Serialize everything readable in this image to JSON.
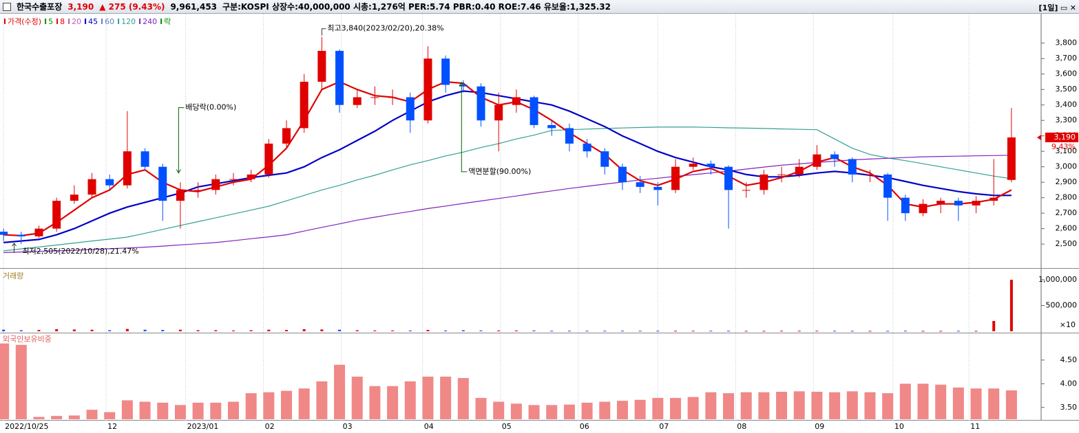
{
  "header": {
    "name": "한국수출포장",
    "price": "3,190",
    "change": "▲ 275 (9.43%)",
    "volume": "9,961,453",
    "info": "구분:KOSPI 상장수:40,000,000 시총:1,276억 PER:5.74 PBR:0.40 ROE:7.46 유보율:1,325.32",
    "period": "[1일]"
  },
  "chart_data": [
    {
      "type": "candlestick",
      "legend": [
        {
          "name": "가격(수정)",
          "color": "#e00000"
        },
        {
          "name": "5",
          "color": "#009000"
        },
        {
          "name": "8",
          "color": "#e00000"
        },
        {
          "name": "20",
          "color": "#c060b0"
        },
        {
          "name": "45",
          "color": "#0000c8"
        },
        {
          "name": "60",
          "color": "#6080c8"
        },
        {
          "name": "120",
          "color": "#30a090"
        },
        {
          "name": "240",
          "color": "#8020c0"
        },
        {
          "name": "락",
          "color": "#009000"
        }
      ],
      "x": [
        0,
        1,
        2,
        3,
        4,
        5,
        6,
        7,
        8,
        9,
        10,
        11,
        12,
        13,
        14,
        15,
        16,
        17,
        18,
        19,
        20,
        21,
        22,
        23,
        24,
        25,
        26,
        27,
        28,
        29,
        30,
        31,
        32,
        33,
        34,
        35,
        36,
        37,
        38,
        39,
        40,
        41,
        42,
        43,
        44,
        45,
        46,
        47,
        48,
        49,
        50,
        51,
        52,
        53,
        54,
        55,
        56,
        57
      ],
      "open": [
        2580,
        2560,
        2550,
        2600,
        2780,
        2820,
        2920,
        2880,
        3100,
        3000,
        2780,
        2850,
        2850,
        2920,
        2920,
        2950,
        3150,
        3250,
        3550,
        3750,
        3400,
        3450,
        3450,
        3450,
        3300,
        3700,
        3530,
        3520,
        3300,
        3400,
        3450,
        3270,
        3250,
        3150,
        3100,
        3000,
        2900,
        2870,
        2850,
        3000,
        3020,
        3000,
        2850,
        2850,
        2950,
        2950,
        3000,
        3080,
        3050,
        2950,
        2950,
        2800,
        2700,
        2760,
        2780,
        2750,
        2780,
        2915
      ],
      "high": [
        2600,
        2580,
        2620,
        2800,
        2880,
        2960,
        2950,
        3360,
        3120,
        3020,
        2900,
        2900,
        2950,
        2960,
        2980,
        3180,
        3300,
        3600,
        3840,
        3760,
        3500,
        3520,
        3500,
        3480,
        3780,
        3720,
        3560,
        3540,
        3480,
        3500,
        3460,
        3300,
        3280,
        3180,
        3120,
        3020,
        2940,
        2900,
        3050,
        3060,
        3040,
        3010,
        2900,
        2980,
        3000,
        3050,
        3140,
        3100,
        3060,
        2980,
        2960,
        2820,
        2790,
        2800,
        2800,
        2810,
        3050,
        3380
      ],
      "low": [
        2520,
        2500,
        2540,
        2580,
        2760,
        2800,
        2850,
        2860,
        2980,
        2650,
        2600,
        2800,
        2820,
        2880,
        2900,
        2930,
        3120,
        3220,
        3500,
        3350,
        3380,
        3400,
        3400,
        3220,
        3280,
        3480,
        3480,
        3260,
        3100,
        3350,
        3250,
        3200,
        3100,
        3060,
        2950,
        2850,
        2830,
        2750,
        2830,
        2980,
        2950,
        2600,
        2800,
        2820,
        2900,
        2930,
        2980,
        3000,
        2900,
        2900,
        2650,
        2650,
        2680,
        2700,
        2650,
        2700,
        2750,
        2900
      ],
      "close": [
        2560,
        2550,
        2600,
        2780,
        2820,
        2920,
        2880,
        3100,
        3000,
        2780,
        2850,
        2850,
        2920,
        2920,
        2950,
        3150,
        3250,
        3550,
        3750,
        3400,
        3450,
        3450,
        3450,
        3300,
        3700,
        3530,
        3520,
        3300,
        3400,
        3450,
        3270,
        3250,
        3150,
        3100,
        3000,
        2900,
        2870,
        2850,
        3000,
        3020,
        3000,
        2850,
        2850,
        2950,
        2950,
        3000,
        3080,
        3050,
        2950,
        2950,
        2800,
        2700,
        2760,
        2780,
        2750,
        2780,
        2800,
        3190
      ],
      "up_color": "#e00000",
      "down_color": "#0050ff",
      "series": [
        {
          "color": "#30a090",
          "values": [
            2456,
            2469,
            2481,
            2494,
            2507,
            2520,
            2532,
            2545,
            2570,
            2595,
            2620,
            2645,
            2670,
            2695,
            2720,
            2745,
            2780,
            2815,
            2850,
            2880,
            2915,
            2945,
            2980,
            3013,
            3040,
            3070,
            3095,
            3125,
            3150,
            3180,
            3205,
            3235,
            3240,
            3244,
            3248,
            3251,
            3254,
            3257,
            3257,
            3257,
            3255,
            3252,
            3250,
            3248,
            3245,
            3242,
            3240,
            3180,
            3120,
            3080,
            3057,
            3040,
            3020,
            3000,
            2980,
            2960,
            2940,
            2923
          ]
        },
        {
          "color": "#8020c0",
          "values": [
            2445,
            2449,
            2453,
            2456,
            2460,
            2465,
            2470,
            2475,
            2480,
            2487,
            2495,
            2502,
            2510,
            2522,
            2535,
            2547,
            2560,
            2584,
            2608,
            2631,
            2655,
            2674,
            2693,
            2711,
            2730,
            2746,
            2763,
            2779,
            2795,
            2811,
            2828,
            2844,
            2860,
            2874,
            2888,
            2901,
            2915,
            2926,
            2938,
            2949,
            2960,
            2972,
            2985,
            2998,
            3010,
            3019,
            3028,
            3036,
            3045,
            3050,
            3055,
            3060,
            3065,
            3067,
            3069,
            3071,
            3073,
            3075
          ]
        },
        {
          "color": "#0000c8",
          "values": [
            2510,
            2520,
            2530,
            2560,
            2600,
            2650,
            2700,
            2740,
            2770,
            2800,
            2830,
            2870,
            2890,
            2910,
            2930,
            2945,
            2960,
            3000,
            3060,
            3110,
            3170,
            3230,
            3300,
            3360,
            3420,
            3460,
            3490,
            3480,
            3460,
            3440,
            3420,
            3400,
            3360,
            3310,
            3260,
            3200,
            3150,
            3100,
            3060,
            3030,
            3000,
            2980,
            2950,
            2935,
            2935,
            2945,
            2960,
            2970,
            2960,
            2945,
            2930,
            2905,
            2880,
            2860,
            2840,
            2825,
            2815,
            2815
          ]
        },
        {
          "color": "#e00000",
          "values": [
            2560,
            2555,
            2570,
            2640,
            2720,
            2800,
            2850,
            2950,
            2980,
            2900,
            2850,
            2840,
            2870,
            2900,
            2920,
            3010,
            3120,
            3300,
            3500,
            3550,
            3500,
            3460,
            3450,
            3420,
            3500,
            3550,
            3540,
            3450,
            3400,
            3420,
            3370,
            3300,
            3220,
            3150,
            3080,
            2980,
            2910,
            2880,
            2920,
            2970,
            2990,
            2940,
            2880,
            2900,
            2930,
            2970,
            3030,
            3060,
            3000,
            2960,
            2880,
            2760,
            2740,
            2760,
            2760,
            2770,
            2790,
            2850
          ]
        }
      ],
      "xlim": [
        -0.2,
        58.6
      ],
      "ylim": [
        2345,
        3990
      ],
      "yticks": [
        {
          "value": 2500,
          "label": "2,500"
        },
        {
          "value": 2600,
          "label": "2,600"
        },
        {
          "value": 2700,
          "label": "2,700"
        },
        {
          "value": 2800,
          "label": "2,800"
        },
        {
          "value": 2900,
          "label": "2,900"
        },
        {
          "value": 3000,
          "label": "3,000"
        },
        {
          "value": 3100,
          "label": "3,100"
        },
        {
          "value": 3200,
          "label": "3,200"
        },
        {
          "value": 3300,
          "label": "3,300"
        },
        {
          "value": 3400,
          "label": "3,400"
        },
        {
          "value": 3500,
          "label": "3,500"
        },
        {
          "value": 3600,
          "label": "3,600"
        },
        {
          "value": 3700,
          "label": "3,700"
        },
        {
          "value": 3800,
          "label": "3,800"
        }
      ],
      "annotations": [
        {
          "text": "최고3,840(2023/02/20),20.38%",
          "x": 18,
          "y": 3840,
          "direction": "left"
        },
        {
          "text": "최저2,505(2022/10/28),21.47%",
          "x": 0.6,
          "y": 2505,
          "direction": "up"
        },
        {
          "text": "배당락(0.00%)",
          "x": 9.9,
          "y": 2960,
          "direction": "down"
        },
        {
          "text": "액면분할(90.00%)",
          "x": 25.9,
          "y": 3546,
          "direction": "below"
        }
      ],
      "last_price_label": "3,190",
      "last_change_label": "9.43%"
    },
    {
      "type": "bar",
      "title": "거래량",
      "color": "#e00000",
      "values": [
        30000,
        20000,
        25000,
        40000,
        35000,
        30000,
        20000,
        45000,
        30000,
        25000,
        30000,
        20000,
        20000,
        15000,
        20000,
        30000,
        25000,
        40000,
        35000,
        30000,
        20000,
        15000,
        15000,
        15000,
        25000,
        15000,
        20000,
        15000,
        15000,
        15000,
        15000,
        10000,
        10000,
        10000,
        10000,
        10000,
        10000,
        10000,
        10000,
        10000,
        10000,
        10000,
        8000,
        8000,
        10000,
        10000,
        10000,
        10000,
        8000,
        8000,
        8000,
        10000,
        8000,
        8000,
        8000,
        8000,
        200000,
        1000000
      ],
      "ylim": [
        0,
        1200000
      ],
      "yticks": [
        {
          "value": 1000000,
          "label": "1,000,000"
        },
        {
          "value": 500000,
          "label": "500,000"
        }
      ],
      "unit_label": "×10"
    },
    {
      "type": "bar",
      "title": "외국인보유비중",
      "color": "#f08888",
      "values": [
        4.85,
        4.82,
        3.3,
        3.32,
        3.33,
        3.45,
        3.4,
        3.65,
        3.62,
        3.6,
        3.55,
        3.6,
        3.6,
        3.62,
        3.8,
        3.82,
        3.85,
        3.9,
        4.05,
        4.4,
        4.15,
        3.95,
        3.95,
        4.05,
        4.15,
        4.15,
        4.12,
        3.7,
        3.62,
        3.58,
        3.55,
        3.55,
        3.56,
        3.6,
        3.62,
        3.64,
        3.66,
        3.7,
        3.7,
        3.72,
        3.82,
        3.8,
        3.82,
        3.82,
        3.83,
        3.84,
        3.83,
        3.82,
        3.84,
        3.82,
        3.8,
        4.0,
        4.0,
        3.98,
        3.92,
        3.9,
        3.9,
        3.86
      ],
      "ylim": [
        3.25,
        5.02
      ],
      "yticks": [
        {
          "value": 3.5,
          "label": "3.50"
        },
        {
          "value": 4,
          "label": "4.00"
        },
        {
          "value": 4.5,
          "label": "4.50"
        }
      ],
      "xticks": [
        {
          "value": 0,
          "label": "2022/10/25"
        },
        {
          "value": 5.8,
          "label": "12"
        },
        {
          "value": 10.3,
          "label": "2023/01"
        },
        {
          "value": 14.7,
          "label": "02"
        },
        {
          "value": 19.1,
          "label": "03"
        },
        {
          "value": 23.7,
          "label": "04"
        },
        {
          "value": 28.1,
          "label": "05"
        },
        {
          "value": 32.5,
          "label": "06"
        },
        {
          "value": 37.0,
          "label": "07"
        },
        {
          "value": 41.4,
          "label": "08"
        },
        {
          "value": 45.8,
          "label": "09"
        },
        {
          "value": 50.3,
          "label": "10"
        },
        {
          "value": 54.6,
          "label": "11"
        }
      ]
    }
  ]
}
